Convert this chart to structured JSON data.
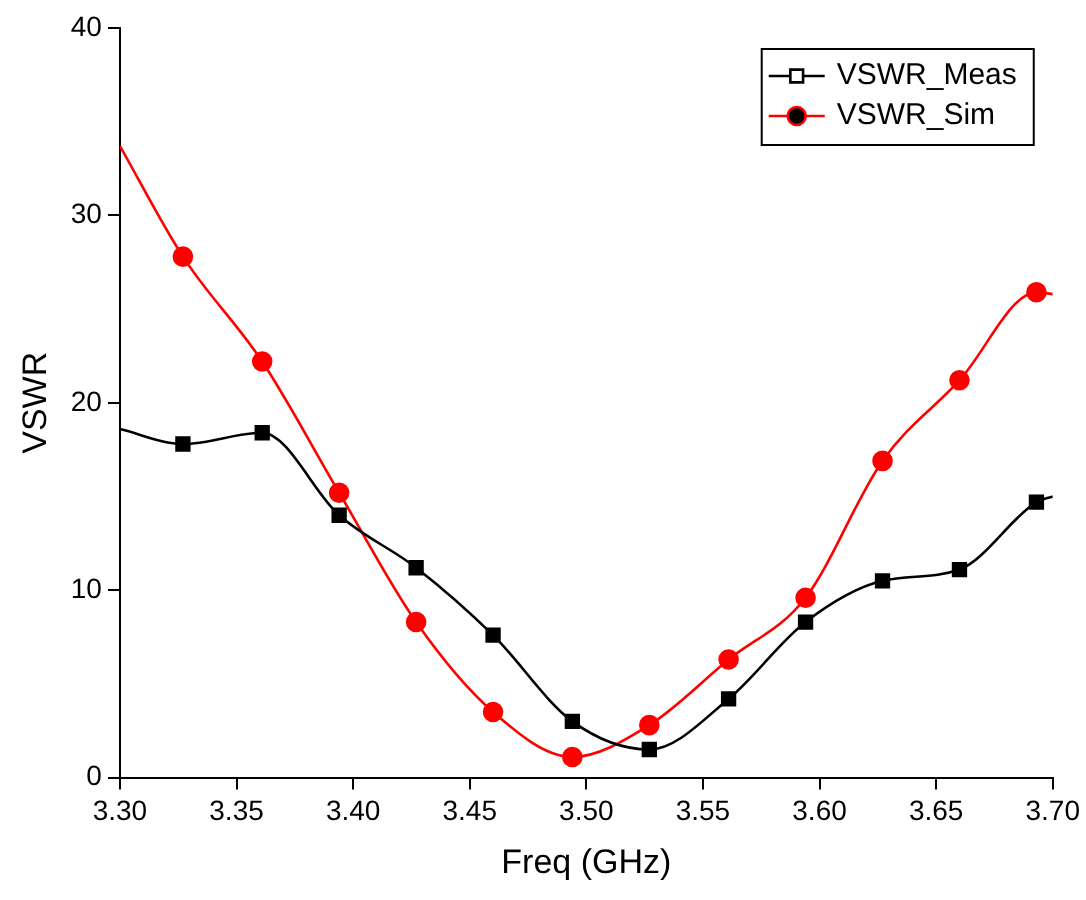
{
  "chart_data": {
    "type": "line",
    "xlabel": "Freq (GHz)",
    "ylabel": "VSWR",
    "xlim": [
      3.3,
      3.7
    ],
    "xticks": [
      {
        "value": 3.3,
        "label": "3.30"
      },
      3.35,
      {
        "value": 3.4,
        "label": "3.40"
      },
      3.45,
      {
        "value": 3.5,
        "label": "3.50"
      },
      3.55,
      {
        "value": 3.6,
        "label": "3.60"
      },
      3.65,
      {
        "value": 3.7,
        "label": "3.70"
      }
    ],
    "ylim": [
      0,
      40
    ],
    "yticks": [
      0,
      10,
      20,
      30,
      40
    ],
    "grid": false,
    "legend": "top right",
    "line_style": "solid",
    "series": [
      {
        "name": "VSWR_Meas",
        "color": "#000000",
        "marker": "square",
        "x": [
          3.3,
          3.327,
          3.361,
          3.394,
          3.427,
          3.46,
          3.494,
          3.527,
          3.561,
          3.594,
          3.627,
          3.66,
          3.693,
          3.7
        ],
        "values": [
          18.6,
          17.8,
          18.4,
          14.0,
          11.2,
          7.6,
          3.0,
          1.5,
          4.2,
          8.3,
          10.5,
          11.1,
          14.7,
          15.0
        ]
      },
      {
        "name": "VSWR_Sim",
        "color": "#ff0000",
        "marker": "circle",
        "x": [
          3.3,
          3.327,
          3.361,
          3.394,
          3.427,
          3.46,
          3.494,
          3.527,
          3.561,
          3.594,
          3.627,
          3.66,
          3.693,
          3.7
        ],
        "values": [
          33.7,
          27.8,
          22.2,
          15.2,
          8.3,
          3.5,
          1.1,
          2.8,
          6.3,
          9.6,
          16.9,
          21.2,
          25.9,
          25.8
        ]
      }
    ]
  }
}
